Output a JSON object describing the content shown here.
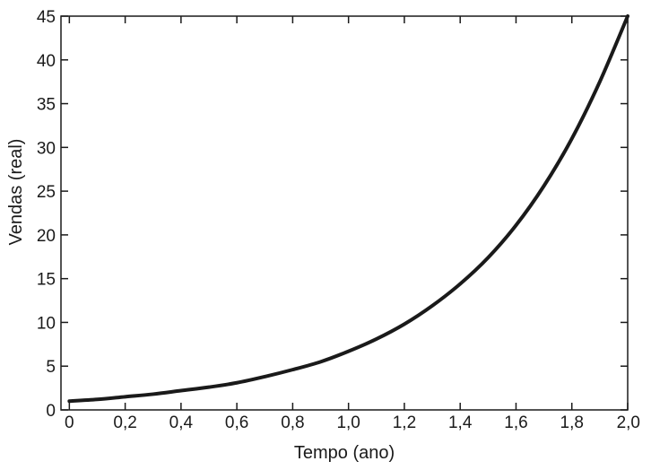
{
  "chart_data": {
    "type": "line",
    "title": "",
    "xlabel": "Tempo (ano)",
    "ylabel": "Vendas (real)",
    "xlim": [
      -0.03,
      2.0
    ],
    "ylim": [
      0,
      45
    ],
    "x_ticks": [
      0,
      0.2,
      0.4,
      0.6,
      0.8,
      1.0,
      1.2,
      1.4,
      1.6,
      1.8,
      2.0
    ],
    "x_tick_labels": [
      "0",
      "0,2",
      "0,4",
      "0,6",
      "0,8",
      "1,0",
      "1,2",
      "1,4",
      "1,6",
      "1,8",
      "2,0"
    ],
    "y_ticks": [
      0,
      5,
      10,
      15,
      20,
      25,
      30,
      35,
      40,
      45
    ],
    "y_tick_labels": [
      "0",
      "5",
      "10",
      "15",
      "20",
      "25",
      "30",
      "35",
      "40",
      "45"
    ],
    "grid": false,
    "line_color": "#1a1a1a",
    "series": [
      {
        "x": [
          0,
          0.1,
          0.2,
          0.3,
          0.4,
          0.5,
          0.6,
          0.7,
          0.8,
          0.9,
          1.0,
          1.1,
          1.2,
          1.3,
          1.4,
          1.5,
          1.6,
          1.7,
          1.8,
          1.9,
          2.0
        ],
        "values": [
          1.0,
          1.2,
          1.5,
          1.8,
          2.2,
          2.6,
          3.1,
          3.8,
          4.6,
          5.5,
          6.7,
          8.1,
          9.8,
          11.9,
          14.4,
          17.4,
          21.1,
          25.6,
          31.0,
          37.5,
          45.0
        ]
      }
    ]
  }
}
